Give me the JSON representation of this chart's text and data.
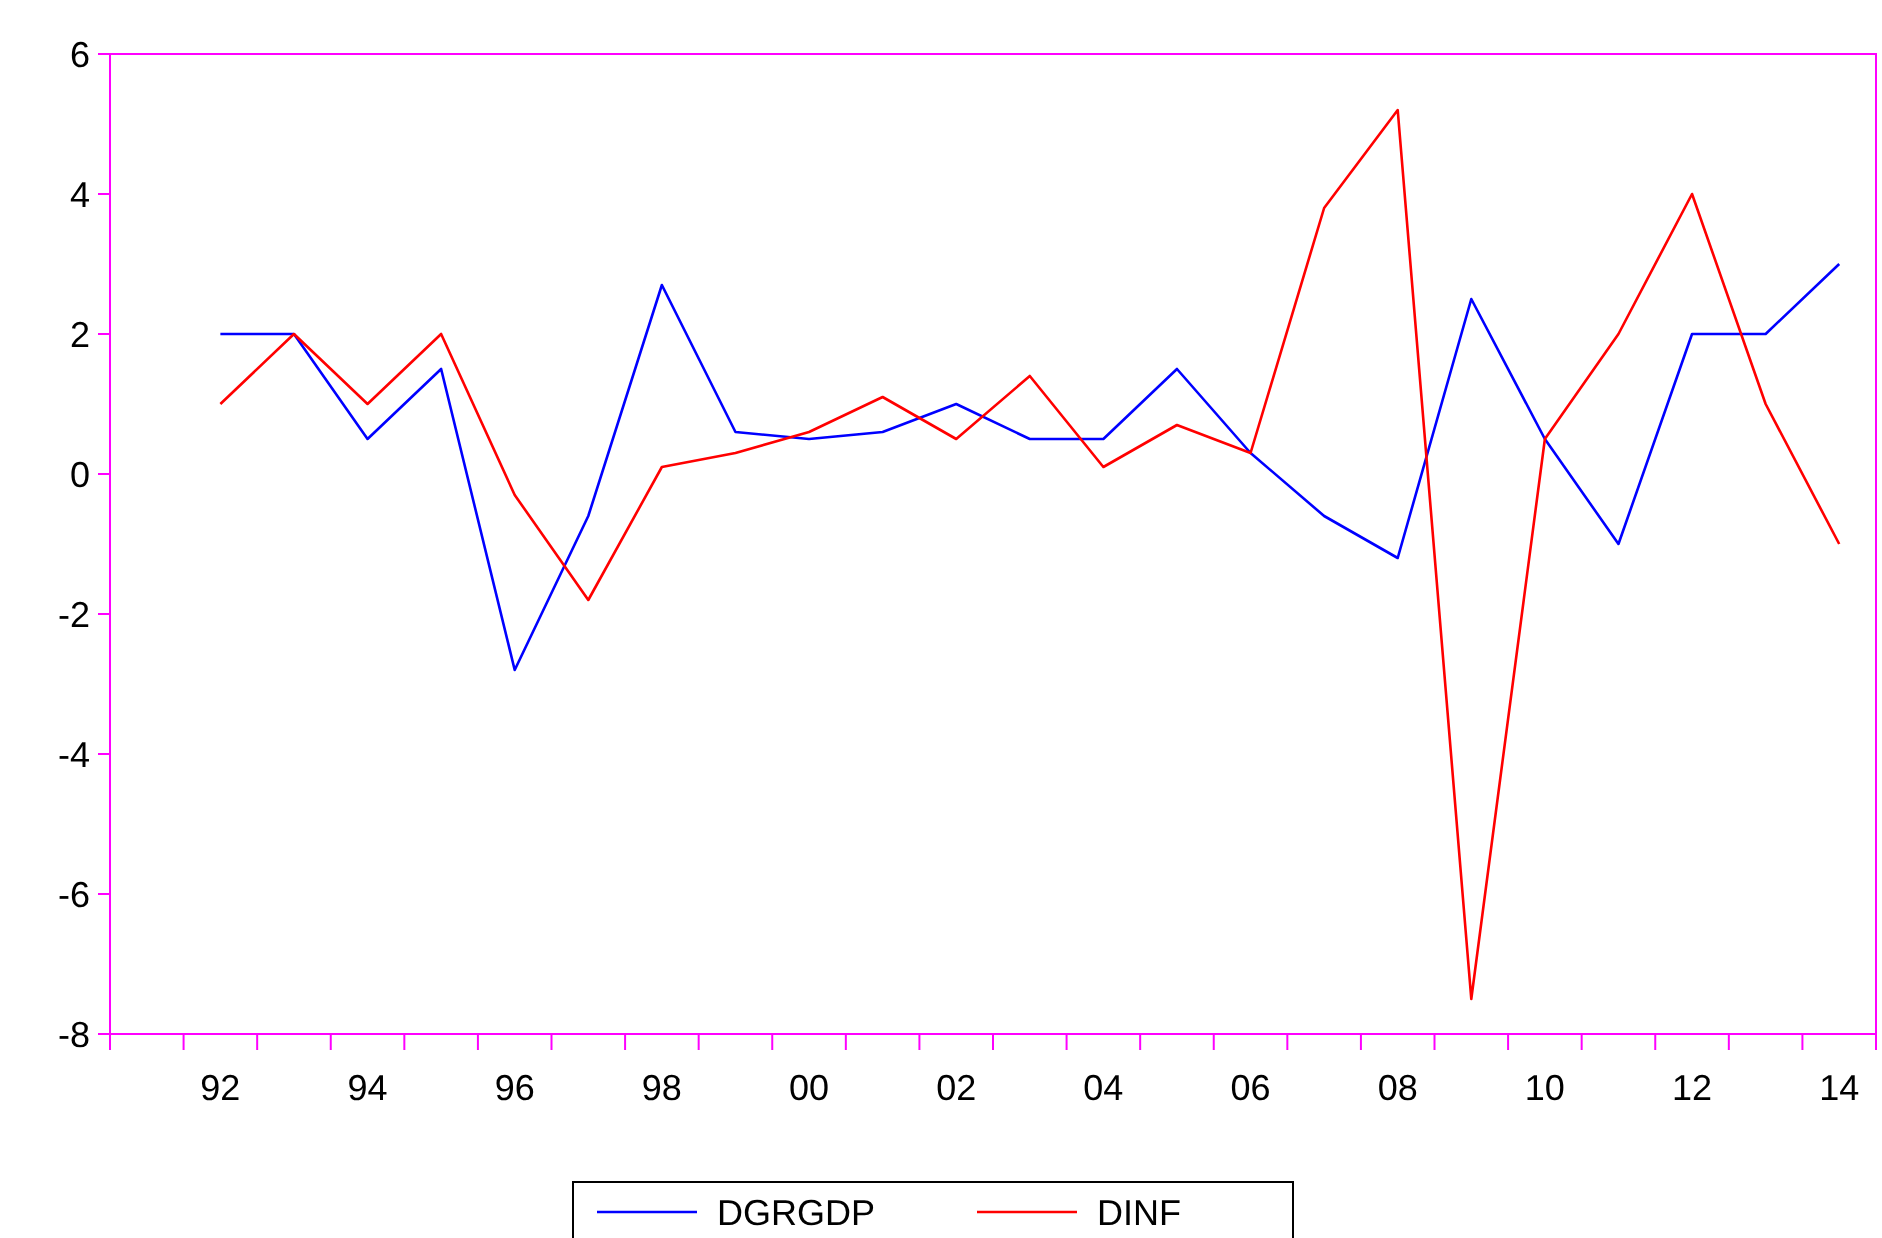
{
  "chart_data": {
    "type": "line",
    "categories": [
      null,
      "92",
      null,
      "94",
      null,
      "96",
      null,
      "98",
      null,
      "00",
      null,
      "02",
      null,
      "04",
      null,
      "06",
      null,
      "08",
      null,
      "10",
      null,
      "12",
      null,
      "14"
    ],
    "series": [
      {
        "name": "DGRGDP",
        "color": "#0000ff",
        "values": [
          null,
          2,
          2,
          0.5,
          1.5,
          -2.8,
          -0.6,
          2.7,
          0.6,
          0.5,
          0.6,
          1.0,
          0.5,
          0.5,
          1.5,
          0.3,
          -0.6,
          -1.2,
          2.5,
          0.5,
          -1.0,
          2,
          2,
          3.0
        ]
      },
      {
        "name": "DINF",
        "color": "#ff0000",
        "values": [
          null,
          1.0,
          2,
          1.0,
          2,
          -0.3,
          -1.8,
          0.1,
          0.3,
          0.6,
          1.1,
          0.5,
          1.4,
          0.1,
          0.7,
          0.3,
          3.8,
          5.2,
          -7.5,
          0.5,
          2.0,
          4.0,
          1.0,
          -1.0
        ]
      }
    ],
    "ylim": [
      -8,
      6
    ],
    "yticks": [
      -8,
      -6,
      -4,
      -2,
      0,
      2,
      4,
      6
    ],
    "grid": false,
    "legend": "bottom",
    "marker": "none",
    "line_style": "solid"
  }
}
